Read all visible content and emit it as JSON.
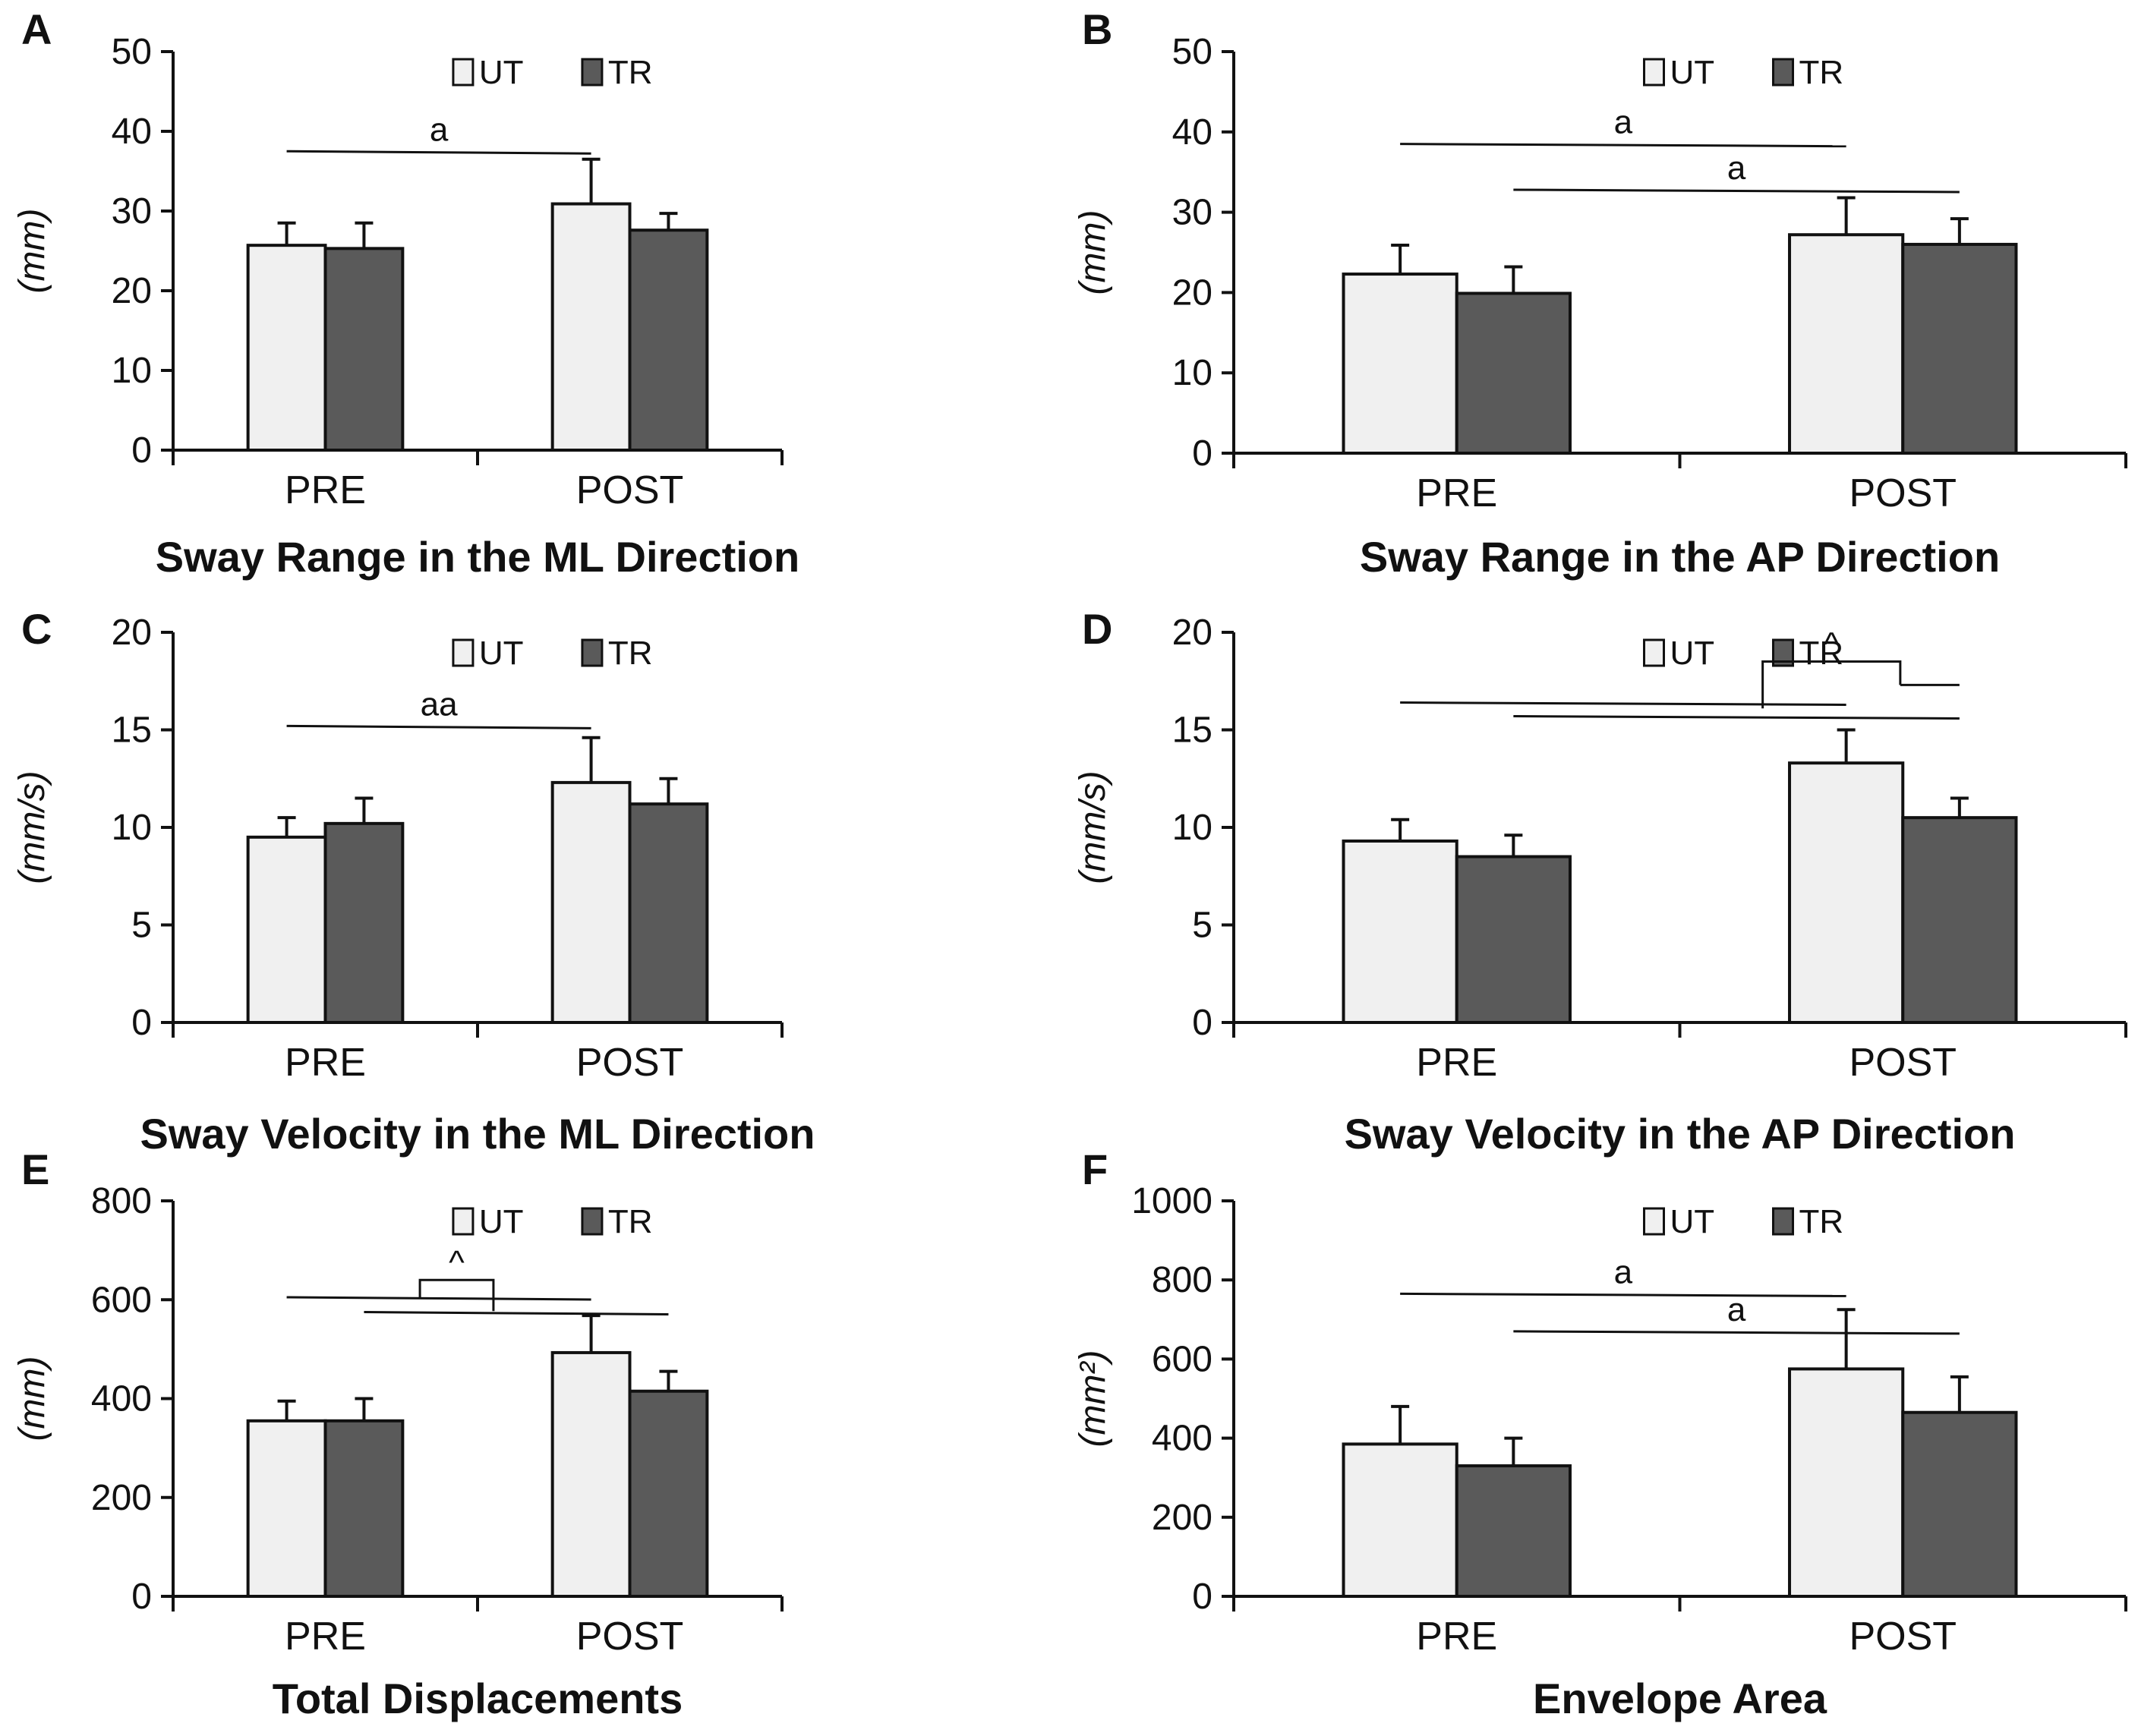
{
  "colors": {
    "ut": "#f0f0f0",
    "tr": "#5a5a5a",
    "stroke": "#111111"
  },
  "legend": {
    "ut": "UT",
    "tr": "TR"
  },
  "chart_data": [
    {
      "type": "bar",
      "panel": "A",
      "title": "Sway Range in the ML Direction",
      "ylabel": "(mm)",
      "ylim": [
        0,
        50
      ],
      "yticks": [
        0,
        10,
        20,
        30,
        40,
        50
      ],
      "categories": [
        "PRE",
        "POST"
      ],
      "series": [
        {
          "name": "UT",
          "values": [
            25.7,
            30.9
          ],
          "errors": [
            2.8,
            5.6
          ]
        },
        {
          "name": "TR",
          "values": [
            25.3,
            27.6
          ],
          "errors": [
            3.2,
            2.1
          ]
        }
      ],
      "annotations": [
        {
          "label": "a",
          "type": "line",
          "from": [
            0,
            0
          ],
          "to": [
            1,
            0
          ],
          "y": 37.5
        }
      ]
    },
    {
      "type": "bar",
      "panel": "B",
      "title": "Sway Range in the AP Direction",
      "ylabel": "(mm)",
      "ylim": [
        0,
        50
      ],
      "yticks": [
        0,
        10,
        20,
        30,
        40,
        50
      ],
      "categories": [
        "PRE",
        "POST"
      ],
      "series": [
        {
          "name": "UT",
          "values": [
            22.3,
            27.2
          ],
          "errors": [
            3.6,
            4.6
          ]
        },
        {
          "name": "TR",
          "values": [
            19.9,
            26.0
          ],
          "errors": [
            3.3,
            3.2
          ]
        }
      ],
      "annotations": [
        {
          "label": "a",
          "type": "line",
          "from": [
            0,
            0
          ],
          "to": [
            1,
            0
          ],
          "y": 38.5
        },
        {
          "label": "a",
          "type": "line",
          "from": [
            0,
            1
          ],
          "to": [
            1,
            1
          ],
          "y": 32.8
        }
      ]
    },
    {
      "type": "bar",
      "panel": "C",
      "title": "Sway Velocity in the ML Direction",
      "ylabel": "(mm/s)",
      "ylim": [
        0,
        20
      ],
      "yticks": [
        0,
        5,
        10,
        15,
        20
      ],
      "categories": [
        "PRE",
        "POST"
      ],
      "series": [
        {
          "name": "UT",
          "values": [
            9.5,
            12.3
          ],
          "errors": [
            1.0,
            2.3
          ]
        },
        {
          "name": "TR",
          "values": [
            10.2,
            11.2
          ],
          "errors": [
            1.3,
            1.3
          ]
        }
      ],
      "annotations": [
        {
          "label": "aa",
          "type": "line",
          "from": [
            0,
            0
          ],
          "to": [
            1,
            0
          ],
          "y": 15.2
        }
      ]
    },
    {
      "type": "bar",
      "panel": "D",
      "title": "Sway Velocity in the AP Direction",
      "ylabel": "(mm/s)",
      "ylim": [
        0,
        20
      ],
      "yticks": [
        0,
        5,
        10,
        15,
        20
      ],
      "categories": [
        "PRE",
        "POST"
      ],
      "series": [
        {
          "name": "UT",
          "values": [
            9.3,
            13.3
          ],
          "errors": [
            1.1,
            1.7
          ]
        },
        {
          "name": "TR",
          "values": [
            8.5,
            10.5
          ],
          "errors": [
            1.1,
            1.0
          ]
        }
      ],
      "annotations": [
        {
          "label": "",
          "type": "line",
          "from": [
            0,
            0
          ],
          "to": [
            1,
            0
          ],
          "y": 16.4
        },
        {
          "label": "",
          "type": "line",
          "from": [
            0,
            1
          ],
          "to": [
            1,
            1
          ],
          "y": 15.7
        },
        {
          "label": "^",
          "type": "bracket",
          "left_y": 16.1,
          "right_y": 17.3,
          "top": 18.5
        }
      ]
    },
    {
      "type": "bar",
      "panel": "E",
      "title": "Total Displacements",
      "ylabel": "(mm)",
      "ylim": [
        0,
        800
      ],
      "yticks": [
        0,
        200,
        400,
        600,
        800
      ],
      "categories": [
        "PRE",
        "POST"
      ],
      "series": [
        {
          "name": "UT",
          "values": [
            355,
            493
          ],
          "errors": [
            40,
            75
          ]
        },
        {
          "name": "TR",
          "values": [
            355,
            415
          ],
          "errors": [
            45,
            40
          ]
        }
      ],
      "annotations": [
        {
          "label": "",
          "type": "line",
          "from": [
            0,
            0
          ],
          "to": [
            1,
            0
          ],
          "y": 605
        },
        {
          "label": "",
          "type": "line",
          "from": [
            0,
            1
          ],
          "to": [
            1,
            1
          ],
          "y": 575
        },
        {
          "label": "^",
          "type": "bracket",
          "left_y": 603,
          "right_y": 577,
          "top": 640
        }
      ]
    },
    {
      "type": "bar",
      "panel": "F",
      "title": "Envelope Area",
      "ylabel": "(mm²)",
      "ylim": [
        0,
        1000
      ],
      "yticks": [
        0,
        200,
        400,
        600,
        800,
        1000
      ],
      "categories": [
        "PRE",
        "POST"
      ],
      "series": [
        {
          "name": "UT",
          "values": [
            385,
            575
          ],
          "errors": [
            95,
            150
          ]
        },
        {
          "name": "TR",
          "values": [
            330,
            465
          ],
          "errors": [
            70,
            90
          ]
        }
      ],
      "annotations": [
        {
          "label": "a",
          "type": "line",
          "from": [
            0,
            0
          ],
          "to": [
            1,
            0
          ],
          "y": 765
        },
        {
          "label": "a",
          "type": "line",
          "from": [
            0,
            1
          ],
          "to": [
            1,
            1
          ],
          "y": 670
        }
      ]
    }
  ]
}
